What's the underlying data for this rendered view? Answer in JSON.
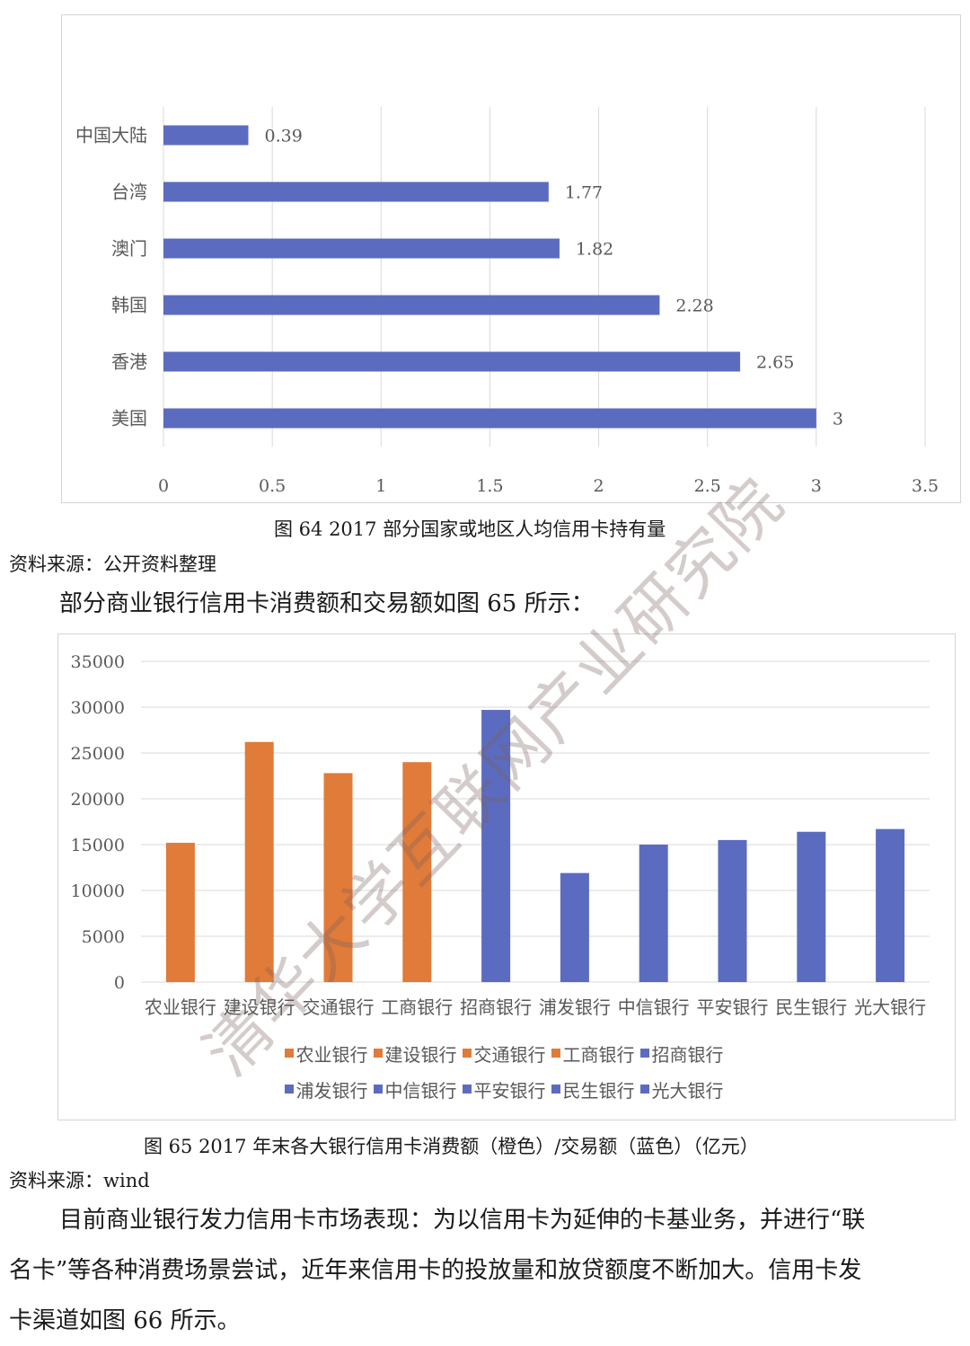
{
  "figure64": {
    "caption": "图 64 2017 部分国家或地区人均信用卡持有量",
    "source": "资料来源：公开资料整理",
    "chart_data": {
      "type": "bar",
      "orientation": "horizontal",
      "categories": [
        "美国",
        "香港",
        "韩国",
        "澳门",
        "台湾",
        "中国大陆"
      ],
      "values": [
        3,
        2.65,
        2.28,
        1.82,
        1.77,
        0.39
      ],
      "value_labels": [
        "3",
        "2.65",
        "2.28",
        "1.82",
        "1.77",
        "0.39"
      ],
      "x_ticks": [
        "0",
        "0.5",
        "1",
        "1.5",
        "2",
        "2.5",
        "3",
        "3.5"
      ],
      "xlim": [
        0,
        3.5
      ],
      "grid": true,
      "color": "#5B6CC0"
    }
  },
  "lead_text": "部分商业银行信用卡消费额和交易额如图 65 所示：",
  "figure65": {
    "caption": "图 65 2017 年末各大银行信用卡消费额（橙色）/交易额（蓝色）（亿元）",
    "source": "资料来源：wind",
    "chart_data": {
      "type": "bar",
      "categories": [
        "农业银行",
        "建设银行",
        "交通银行",
        "工商银行",
        "招商银行",
        "浦发银行",
        "中信银行",
        "平安银行",
        "民生银行",
        "光大银行"
      ],
      "values": [
        15200,
        26200,
        22800,
        24000,
        29700,
        11900,
        15000,
        15500,
        16400,
        16700
      ],
      "colors": [
        "#E07B39",
        "#E07B39",
        "#E07B39",
        "#E07B39",
        "#5B6CC0",
        "#5B6CC0",
        "#5B6CC0",
        "#5B6CC0",
        "#5B6CC0",
        "#5B6CC0"
      ],
      "y_ticks": [
        "0",
        "5000",
        "10000",
        "15000",
        "20000",
        "25000",
        "30000",
        "35000"
      ],
      "ylim": [
        0,
        35000
      ],
      "grid": true,
      "legend_position": "bottom"
    }
  },
  "paragraph": {
    "line1": "目前商业银行发力信用卡市场表现：为以信用卡为延伸的卡基业务，并进行“联",
    "line2": "名卡”等各种消费场景尝试，近年来信用卡的投放量和放贷额度不断加大。信用卡发",
    "line3": "卡渠道如图 66 所示。"
  },
  "watermark": "清华大学互联网产业研究院"
}
